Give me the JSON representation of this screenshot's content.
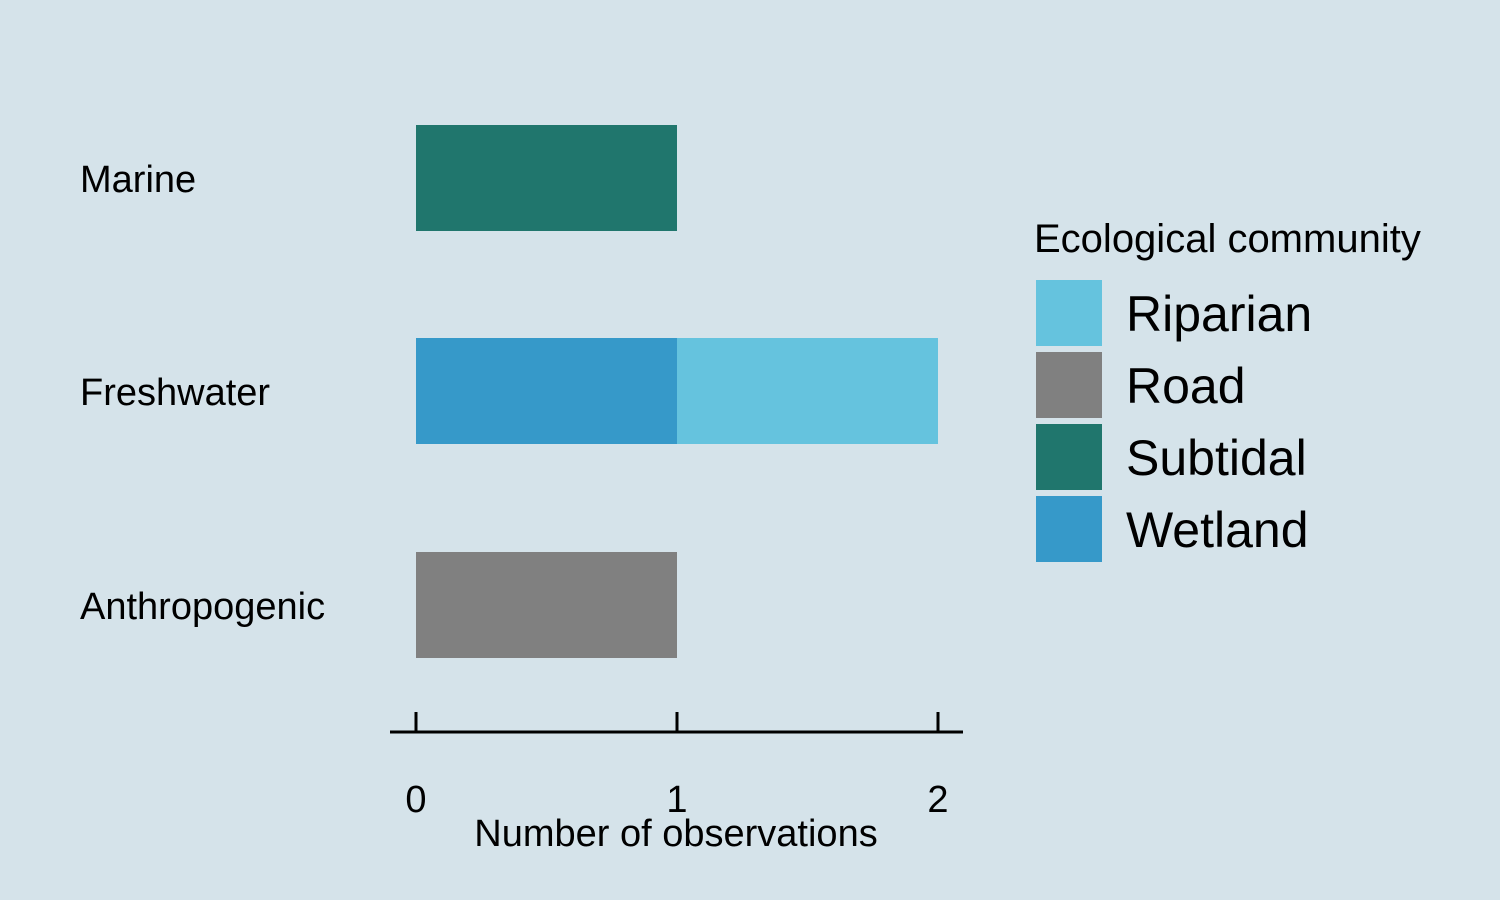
{
  "chart_data": {
    "type": "bar",
    "orientation": "horizontal",
    "stacked": true,
    "categories": [
      "Marine",
      "Freshwater",
      "Anthropogenic"
    ],
    "series": [
      {
        "name": "Wetland",
        "color": "#3699c9",
        "values": [
          0,
          1,
          0
        ]
      },
      {
        "name": "Riparian",
        "color": "#65c3de",
        "values": [
          0,
          1,
          0
        ]
      },
      {
        "name": "Subtidal",
        "color": "#20766d",
        "values": [
          1,
          0,
          0
        ]
      },
      {
        "name": "Road",
        "color": "#808080",
        "values": [
          0,
          0,
          1
        ]
      }
    ],
    "xlabel": "Number of observations",
    "ylabel": "",
    "xlim": [
      0,
      2
    ],
    "xticks": [
      "0",
      "1",
      "2"
    ],
    "grid": false,
    "legend": {
      "title": "Ecological community",
      "position": "right",
      "order": [
        "Riparian",
        "Road",
        "Subtidal",
        "Wetland"
      ]
    }
  },
  "colors": {
    "background": "#d5e3ea"
  }
}
